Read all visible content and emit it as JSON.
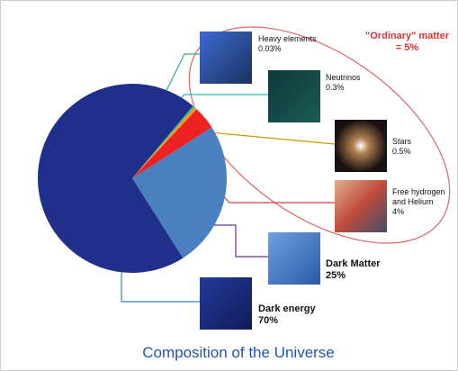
{
  "chart_data": {
    "type": "pie",
    "title": "Composition of the Universe",
    "annotation": "\"Ordinary\" matter = 5%",
    "categories": [
      "Heavy elements",
      "Neutrinos",
      "Stars",
      "Free hydrogen and Helium",
      "Dark Matter",
      "Dark energy"
    ],
    "values": [
      0.03,
      0.3,
      0.5,
      4,
      25,
      70
    ],
    "value_labels": [
      "0.03%",
      "0.3%",
      "0.5%",
      "4%",
      "25%",
      "70%"
    ],
    "colors": [
      "#33aa88",
      "#22bbbb",
      "#ff9900",
      "#ee2222",
      "#4a7fc0",
      "#1f2f8a"
    ]
  }
}
